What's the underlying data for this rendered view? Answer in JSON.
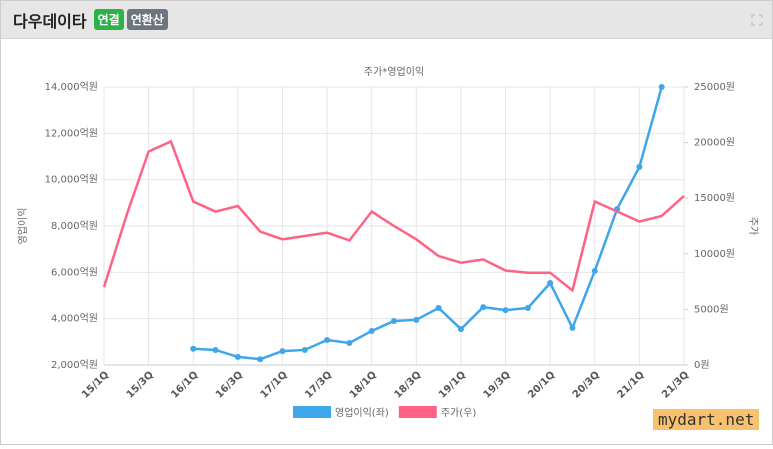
{
  "header": {
    "title": "다우데이타",
    "badges": [
      "연결",
      "연환산"
    ]
  },
  "watermark": "mydart.net",
  "chart_data": {
    "type": "line",
    "title": "주가*영업이익",
    "y_label": "영업이익",
    "y2_label": "주가",
    "categories": [
      "15/1Q",
      null,
      "15/3Q",
      null,
      "16/1Q",
      null,
      "16/3Q",
      null,
      "17/1Q",
      null,
      "17/3Q",
      null,
      "18/1Q",
      null,
      "18/3Q",
      null,
      "19/1Q",
      null,
      "19/3Q",
      null,
      "20/1Q",
      null,
      "20/3Q",
      null,
      "21/1Q",
      null,
      "21/3Q"
    ],
    "ylim": [
      2000,
      14000
    ],
    "yticks": [
      {
        "value": 2000,
        "label": "2,000억원"
      },
      {
        "value": 4000,
        "label": "4,000억원"
      },
      {
        "value": 6000,
        "label": "6,000억원"
      },
      {
        "value": 8000,
        "label": "8,000억원"
      },
      {
        "value": 10000,
        "label": "10,000억원"
      },
      {
        "value": 12000,
        "label": "12,000억원"
      },
      {
        "value": 14000,
        "label": "14,000억원"
      }
    ],
    "y2lim": [
      0,
      25000
    ],
    "y2ticks": [
      {
        "value": 0,
        "label": "0원"
      },
      {
        "value": 5000,
        "label": "5000원"
      },
      {
        "value": 10000,
        "label": "10000원"
      },
      {
        "value": 15000,
        "label": "15000원"
      },
      {
        "value": 20000,
        "label": "20000원"
      },
      {
        "value": 25000,
        "label": "25000원"
      }
    ],
    "grid": true,
    "series": [
      {
        "name": "영업이익(좌)",
        "color": "#3ea6ea",
        "markers": true,
        "values": [
          null,
          null,
          null,
          null,
          2700,
          2650,
          2350,
          2250,
          2600,
          2650,
          3080,
          2950,
          3470,
          3900,
          3950,
          4460,
          3550,
          4500,
          4370,
          4460,
          5540,
          3600,
          6060,
          8730,
          10550,
          14000,
          null
        ]
      },
      {
        "name": "주가(우)",
        "color": "#ff6384",
        "axis": "y2",
        "markers": false,
        "values": [
          7000,
          13400,
          19200,
          20100,
          14700,
          13800,
          14300,
          12000,
          11300,
          11600,
          11900,
          11200,
          13800,
          12500,
          11300,
          9800,
          9200,
          9500,
          8500,
          8300,
          8300,
          6700,
          14700,
          13800,
          12900,
          13400,
          15200
        ]
      }
    ]
  }
}
